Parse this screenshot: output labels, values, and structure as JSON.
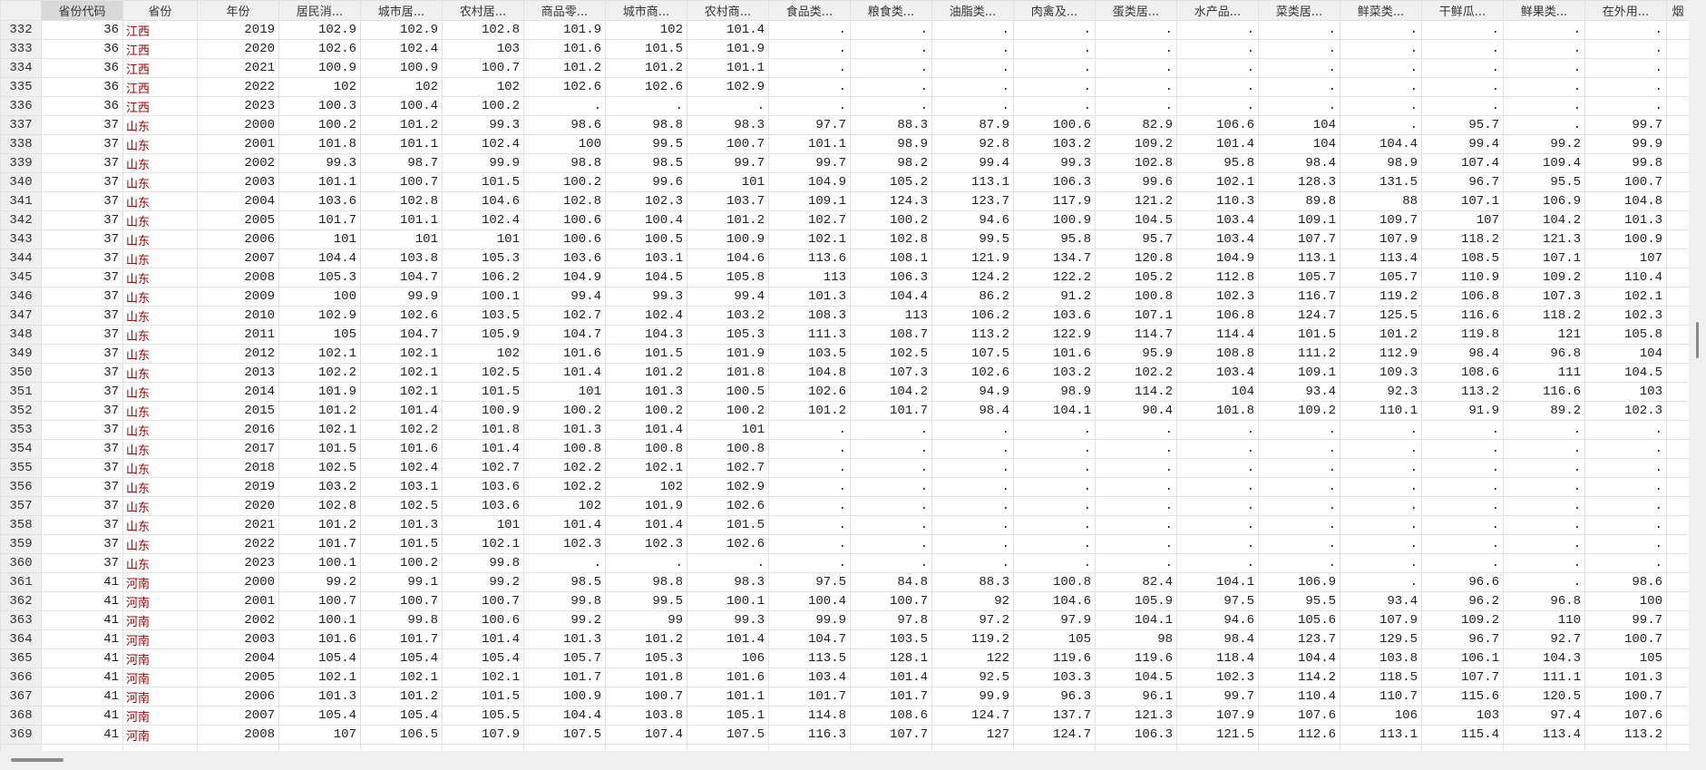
{
  "table": {
    "selected_column": "省份代码",
    "colors": {
      "province_text": "#a00000",
      "header_bg": "#f0f0f0",
      "selected_header_bg": "#d9d9d9"
    },
    "columns": [
      "",
      "省份代码",
      "省份",
      "年份",
      "居民消...",
      "城市居...",
      "农村居...",
      "商品零...",
      "城市商...",
      "农村商...",
      "食品类...",
      "粮食类...",
      "油脂类...",
      "肉禽及...",
      "蛋类居...",
      "水产品...",
      "菜类居...",
      "鲜菜类...",
      "干鲜瓜...",
      "鲜果类...",
      "在外用...",
      "烟"
    ],
    "rows": [
      [
        "332",
        "36",
        "江西",
        "2019",
        "102.9",
        "102.9",
        "102.8",
        "101.9",
        "102",
        "101.4",
        ".",
        ".",
        ".",
        ".",
        ".",
        ".",
        ".",
        ".",
        ".",
        ".",
        ".",
        ""
      ],
      [
        "333",
        "36",
        "江西",
        "2020",
        "102.6",
        "102.4",
        "103",
        "101.6",
        "101.5",
        "101.9",
        ".",
        ".",
        ".",
        ".",
        ".",
        ".",
        ".",
        ".",
        ".",
        ".",
        ".",
        ""
      ],
      [
        "334",
        "36",
        "江西",
        "2021",
        "100.9",
        "100.9",
        "100.7",
        "101.2",
        "101.2",
        "101.1",
        ".",
        ".",
        ".",
        ".",
        ".",
        ".",
        ".",
        ".",
        ".",
        ".",
        ".",
        ""
      ],
      [
        "335",
        "36",
        "江西",
        "2022",
        "102",
        "102",
        "102",
        "102.6",
        "102.6",
        "102.9",
        ".",
        ".",
        ".",
        ".",
        ".",
        ".",
        ".",
        ".",
        ".",
        ".",
        ".",
        ""
      ],
      [
        "336",
        "36",
        "江西",
        "2023",
        "100.3",
        "100.4",
        "100.2",
        ".",
        ".",
        ".",
        ".",
        ".",
        ".",
        ".",
        ".",
        ".",
        ".",
        ".",
        ".",
        ".",
        ".",
        ""
      ],
      [
        "337",
        "37",
        "山东",
        "2000",
        "100.2",
        "101.2",
        "99.3",
        "98.6",
        "98.8",
        "98.3",
        "97.7",
        "88.3",
        "87.9",
        "100.6",
        "82.9",
        "106.6",
        "104",
        ".",
        "95.7",
        ".",
        "99.7",
        ""
      ],
      [
        "338",
        "37",
        "山东",
        "2001",
        "101.8",
        "101.1",
        "102.4",
        "100",
        "99.5",
        "100.7",
        "101.1",
        "98.9",
        "92.8",
        "103.2",
        "109.2",
        "101.4",
        "104",
        "104.4",
        "99.4",
        "99.2",
        "99.9",
        ""
      ],
      [
        "339",
        "37",
        "山东",
        "2002",
        "99.3",
        "98.7",
        "99.9",
        "98.8",
        "98.5",
        "99.7",
        "99.7",
        "98.2",
        "99.4",
        "99.3",
        "102.8",
        "95.8",
        "98.4",
        "98.9",
        "107.4",
        "109.4",
        "99.8",
        ""
      ],
      [
        "340",
        "37",
        "山东",
        "2003",
        "101.1",
        "100.7",
        "101.5",
        "100.2",
        "99.6",
        "101",
        "104.9",
        "105.2",
        "113.1",
        "106.3",
        "99.6",
        "102.1",
        "128.3",
        "131.5",
        "96.7",
        "95.5",
        "100.7",
        ""
      ],
      [
        "341",
        "37",
        "山东",
        "2004",
        "103.6",
        "102.8",
        "104.6",
        "102.8",
        "102.3",
        "103.7",
        "109.1",
        "124.3",
        "123.7",
        "117.9",
        "121.2",
        "110.3",
        "89.8",
        "88",
        "107.1",
        "106.9",
        "104.8",
        ""
      ],
      [
        "342",
        "37",
        "山东",
        "2005",
        "101.7",
        "101.1",
        "102.4",
        "100.6",
        "100.4",
        "101.2",
        "102.7",
        "100.2",
        "94.6",
        "100.9",
        "104.5",
        "103.4",
        "109.1",
        "109.7",
        "107",
        "104.2",
        "101.3",
        ""
      ],
      [
        "343",
        "37",
        "山东",
        "2006",
        "101",
        "101",
        "101",
        "100.6",
        "100.5",
        "100.9",
        "102.1",
        "102.8",
        "99.5",
        "95.8",
        "95.7",
        "103.4",
        "107.7",
        "107.9",
        "118.2",
        "121.3",
        "100.9",
        ""
      ],
      [
        "344",
        "37",
        "山东",
        "2007",
        "104.4",
        "103.8",
        "105.3",
        "103.6",
        "103.1",
        "104.6",
        "113.6",
        "108.1",
        "121.9",
        "134.7",
        "120.8",
        "104.9",
        "113.1",
        "113.4",
        "108.5",
        "107.1",
        "107",
        ""
      ],
      [
        "345",
        "37",
        "山东",
        "2008",
        "105.3",
        "104.7",
        "106.2",
        "104.9",
        "104.5",
        "105.8",
        "113",
        "106.3",
        "124.2",
        "122.2",
        "105.2",
        "112.8",
        "105.7",
        "105.7",
        "110.9",
        "109.2",
        "110.4",
        ""
      ],
      [
        "346",
        "37",
        "山东",
        "2009",
        "100",
        "99.9",
        "100.1",
        "99.4",
        "99.3",
        "99.4",
        "101.3",
        "104.4",
        "86.2",
        "91.2",
        "100.8",
        "102.3",
        "116.7",
        "119.2",
        "106.8",
        "107.3",
        "102.1",
        ""
      ],
      [
        "347",
        "37",
        "山东",
        "2010",
        "102.9",
        "102.6",
        "103.5",
        "102.7",
        "102.4",
        "103.2",
        "108.3",
        "113",
        "106.2",
        "103.6",
        "107.1",
        "106.8",
        "124.7",
        "125.5",
        "116.6",
        "118.2",
        "102.3",
        ""
      ],
      [
        "348",
        "37",
        "山东",
        "2011",
        "105",
        "104.7",
        "105.9",
        "104.7",
        "104.3",
        "105.3",
        "111.3",
        "108.7",
        "113.2",
        "122.9",
        "114.7",
        "114.4",
        "101.5",
        "101.2",
        "119.8",
        "121",
        "105.8",
        ""
      ],
      [
        "349",
        "37",
        "山东",
        "2012",
        "102.1",
        "102.1",
        "102",
        "101.6",
        "101.5",
        "101.9",
        "103.5",
        "102.5",
        "107.5",
        "101.6",
        "95.9",
        "108.8",
        "111.2",
        "112.9",
        "98.4",
        "96.8",
        "104",
        ""
      ],
      [
        "350",
        "37",
        "山东",
        "2013",
        "102.2",
        "102.1",
        "102.5",
        "101.4",
        "101.2",
        "101.8",
        "104.8",
        "107.3",
        "102.6",
        "103.2",
        "102.2",
        "103.4",
        "109.1",
        "109.3",
        "108.6",
        "111",
        "104.5",
        ""
      ],
      [
        "351",
        "37",
        "山东",
        "2014",
        "101.9",
        "102.1",
        "101.5",
        "101",
        "101.3",
        "100.5",
        "102.6",
        "104.2",
        "94.9",
        "98.9",
        "114.2",
        "104",
        "93.4",
        "92.3",
        "113.2",
        "116.6",
        "103",
        ""
      ],
      [
        "352",
        "37",
        "山东",
        "2015",
        "101.2",
        "101.4",
        "100.9",
        "100.2",
        "100.2",
        "100.2",
        "101.2",
        "101.7",
        "98.4",
        "104.1",
        "90.4",
        "101.8",
        "109.2",
        "110.1",
        "91.9",
        "89.2",
        "102.3",
        ""
      ],
      [
        "353",
        "37",
        "山东",
        "2016",
        "102.1",
        "102.2",
        "101.8",
        "101.3",
        "101.4",
        "101",
        ".",
        ".",
        ".",
        ".",
        ".",
        ".",
        ".",
        ".",
        ".",
        ".",
        ".",
        ""
      ],
      [
        "354",
        "37",
        "山东",
        "2017",
        "101.5",
        "101.6",
        "101.4",
        "100.8",
        "100.8",
        "100.8",
        ".",
        ".",
        ".",
        ".",
        ".",
        ".",
        ".",
        ".",
        ".",
        ".",
        ".",
        ""
      ],
      [
        "355",
        "37",
        "山东",
        "2018",
        "102.5",
        "102.4",
        "102.7",
        "102.2",
        "102.1",
        "102.7",
        ".",
        ".",
        ".",
        ".",
        ".",
        ".",
        ".",
        ".",
        ".",
        ".",
        ".",
        ""
      ],
      [
        "356",
        "37",
        "山东",
        "2019",
        "103.2",
        "103.1",
        "103.6",
        "102.2",
        "102",
        "102.9",
        ".",
        ".",
        ".",
        ".",
        ".",
        ".",
        ".",
        ".",
        ".",
        ".",
        ".",
        ""
      ],
      [
        "357",
        "37",
        "山东",
        "2020",
        "102.8",
        "102.5",
        "103.6",
        "102",
        "101.9",
        "102.6",
        ".",
        ".",
        ".",
        ".",
        ".",
        ".",
        ".",
        ".",
        ".",
        ".",
        ".",
        ""
      ],
      [
        "358",
        "37",
        "山东",
        "2021",
        "101.2",
        "101.3",
        "101",
        "101.4",
        "101.4",
        "101.5",
        ".",
        ".",
        ".",
        ".",
        ".",
        ".",
        ".",
        ".",
        ".",
        ".",
        ".",
        ""
      ],
      [
        "359",
        "37",
        "山东",
        "2022",
        "101.7",
        "101.5",
        "102.1",
        "102.3",
        "102.3",
        "102.6",
        ".",
        ".",
        ".",
        ".",
        ".",
        ".",
        ".",
        ".",
        ".",
        ".",
        ".",
        ""
      ],
      [
        "360",
        "37",
        "山东",
        "2023",
        "100.1",
        "100.2",
        "99.8",
        ".",
        ".",
        ".",
        ".",
        ".",
        ".",
        ".",
        ".",
        ".",
        ".",
        ".",
        ".",
        ".",
        ".",
        ""
      ],
      [
        "361",
        "41",
        "河南",
        "2000",
        "99.2",
        "99.1",
        "99.2",
        "98.5",
        "98.8",
        "98.3",
        "97.5",
        "84.8",
        "88.3",
        "100.8",
        "82.4",
        "104.1",
        "106.9",
        ".",
        "96.6",
        ".",
        "98.6",
        ""
      ],
      [
        "362",
        "41",
        "河南",
        "2001",
        "100.7",
        "100.7",
        "100.7",
        "99.8",
        "99.5",
        "100.1",
        "100.4",
        "100.7",
        "92",
        "104.6",
        "105.9",
        "97.5",
        "95.5",
        "93.4",
        "96.2",
        "96.8",
        "100",
        ""
      ],
      [
        "363",
        "41",
        "河南",
        "2002",
        "100.1",
        "99.8",
        "100.6",
        "99.2",
        "99",
        "99.3",
        "99.9",
        "97.8",
        "97.2",
        "97.9",
        "104.1",
        "94.6",
        "105.6",
        "107.9",
        "109.2",
        "110",
        "99.7",
        ""
      ],
      [
        "364",
        "41",
        "河南",
        "2003",
        "101.6",
        "101.7",
        "101.4",
        "101.3",
        "101.2",
        "101.4",
        "104.7",
        "103.5",
        "119.2",
        "105",
        "98",
        "98.4",
        "123.7",
        "129.5",
        "96.7",
        "92.7",
        "100.7",
        ""
      ],
      [
        "365",
        "41",
        "河南",
        "2004",
        "105.4",
        "105.4",
        "105.4",
        "105.7",
        "105.3",
        "106",
        "113.5",
        "128.1",
        "122",
        "119.6",
        "119.6",
        "118.4",
        "104.4",
        "103.8",
        "106.1",
        "104.3",
        "105",
        ""
      ],
      [
        "366",
        "41",
        "河南",
        "2005",
        "102.1",
        "102.1",
        "102.1",
        "101.7",
        "101.8",
        "101.6",
        "103.4",
        "101.4",
        "92.5",
        "103.3",
        "104.5",
        "102.3",
        "114.2",
        "118.5",
        "107.7",
        "111.1",
        "101.3",
        ""
      ],
      [
        "367",
        "41",
        "河南",
        "2006",
        "101.3",
        "101.2",
        "101.5",
        "100.9",
        "100.7",
        "101.1",
        "101.7",
        "101.7",
        "99.9",
        "96.3",
        "96.1",
        "99.7",
        "110.4",
        "110.7",
        "115.6",
        "120.5",
        "100.7",
        ""
      ],
      [
        "368",
        "41",
        "河南",
        "2007",
        "105.4",
        "105.4",
        "105.5",
        "104.4",
        "103.8",
        "105.1",
        "114.8",
        "108.6",
        "124.7",
        "137.7",
        "121.3",
        "107.9",
        "107.6",
        "106",
        "103",
        "97.4",
        "107.6",
        ""
      ],
      [
        "369",
        "41",
        "河南",
        "2008",
        "107",
        "106.5",
        "107.9",
        "107.5",
        "107.4",
        "107.5",
        "116.3",
        "107.7",
        "127",
        "124.7",
        "106.3",
        "121.5",
        "112.6",
        "113.1",
        "115.4",
        "113.4",
        "113.2",
        ""
      ]
    ]
  }
}
